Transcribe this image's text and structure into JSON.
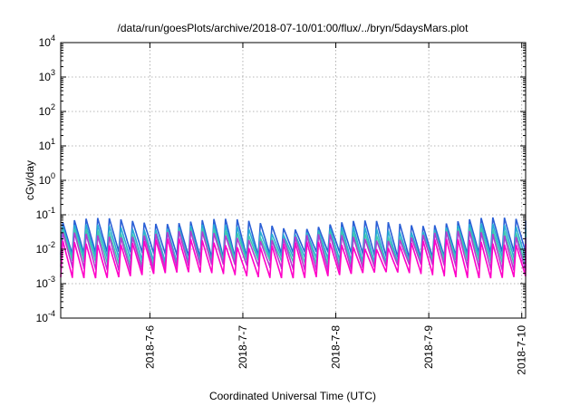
{
  "chart_data": {
    "type": "line",
    "title": "/data/run/goesPlots/archive/2018-07-10/01:00/flux/../bryn/5daysMars.plot",
    "xlabel": "Coordinated Universal Time (UTC)",
    "ylabel": "cGy/day",
    "yscale": "log",
    "ylim": [
      0.0001,
      10000
    ],
    "xlim": [
      "2018-07-05 00:59",
      "2018-07-10 01:00"
    ],
    "x_ticks": [
      {
        "value": "2018-07-06",
        "label": "2018-7-6"
      },
      {
        "value": "2018-07-07",
        "label": "2018-7-7"
      },
      {
        "value": "2018-07-08",
        "label": "2018-7-8"
      },
      {
        "value": "2018-07-09",
        "label": "2018-7-9"
      },
      {
        "value": "2018-07-10",
        "label": "2018-7-10"
      }
    ],
    "y_ticks": [
      {
        "base": "10",
        "exp": "-4"
      },
      {
        "base": "10",
        "exp": "-3"
      },
      {
        "base": "10",
        "exp": "-2"
      },
      {
        "base": "10",
        "exp": "-1"
      },
      {
        "base": "10",
        "exp": "0"
      },
      {
        "base": "10",
        "exp": "1"
      },
      {
        "base": "10",
        "exp": "2"
      },
      {
        "base": "10",
        "exp": "3"
      },
      {
        "base": "10",
        "exp": "4"
      }
    ],
    "grid": true,
    "cycle_period_hours": 3,
    "series": [
      {
        "color": "#2a5fd6",
        "peak": 0.06,
        "trough": 0.007
      },
      {
        "color": "#2aaed6",
        "peak": 0.04,
        "trough": 0.005
      },
      {
        "color": "#40c8b0",
        "peak": 0.03,
        "trough": 0.004
      },
      {
        "color": "#b43cd2",
        "peak": 0.025,
        "trough": 0.003
      },
      {
        "color": "#ff00c8",
        "peak": 0.015,
        "trough": 0.0018
      }
    ]
  }
}
